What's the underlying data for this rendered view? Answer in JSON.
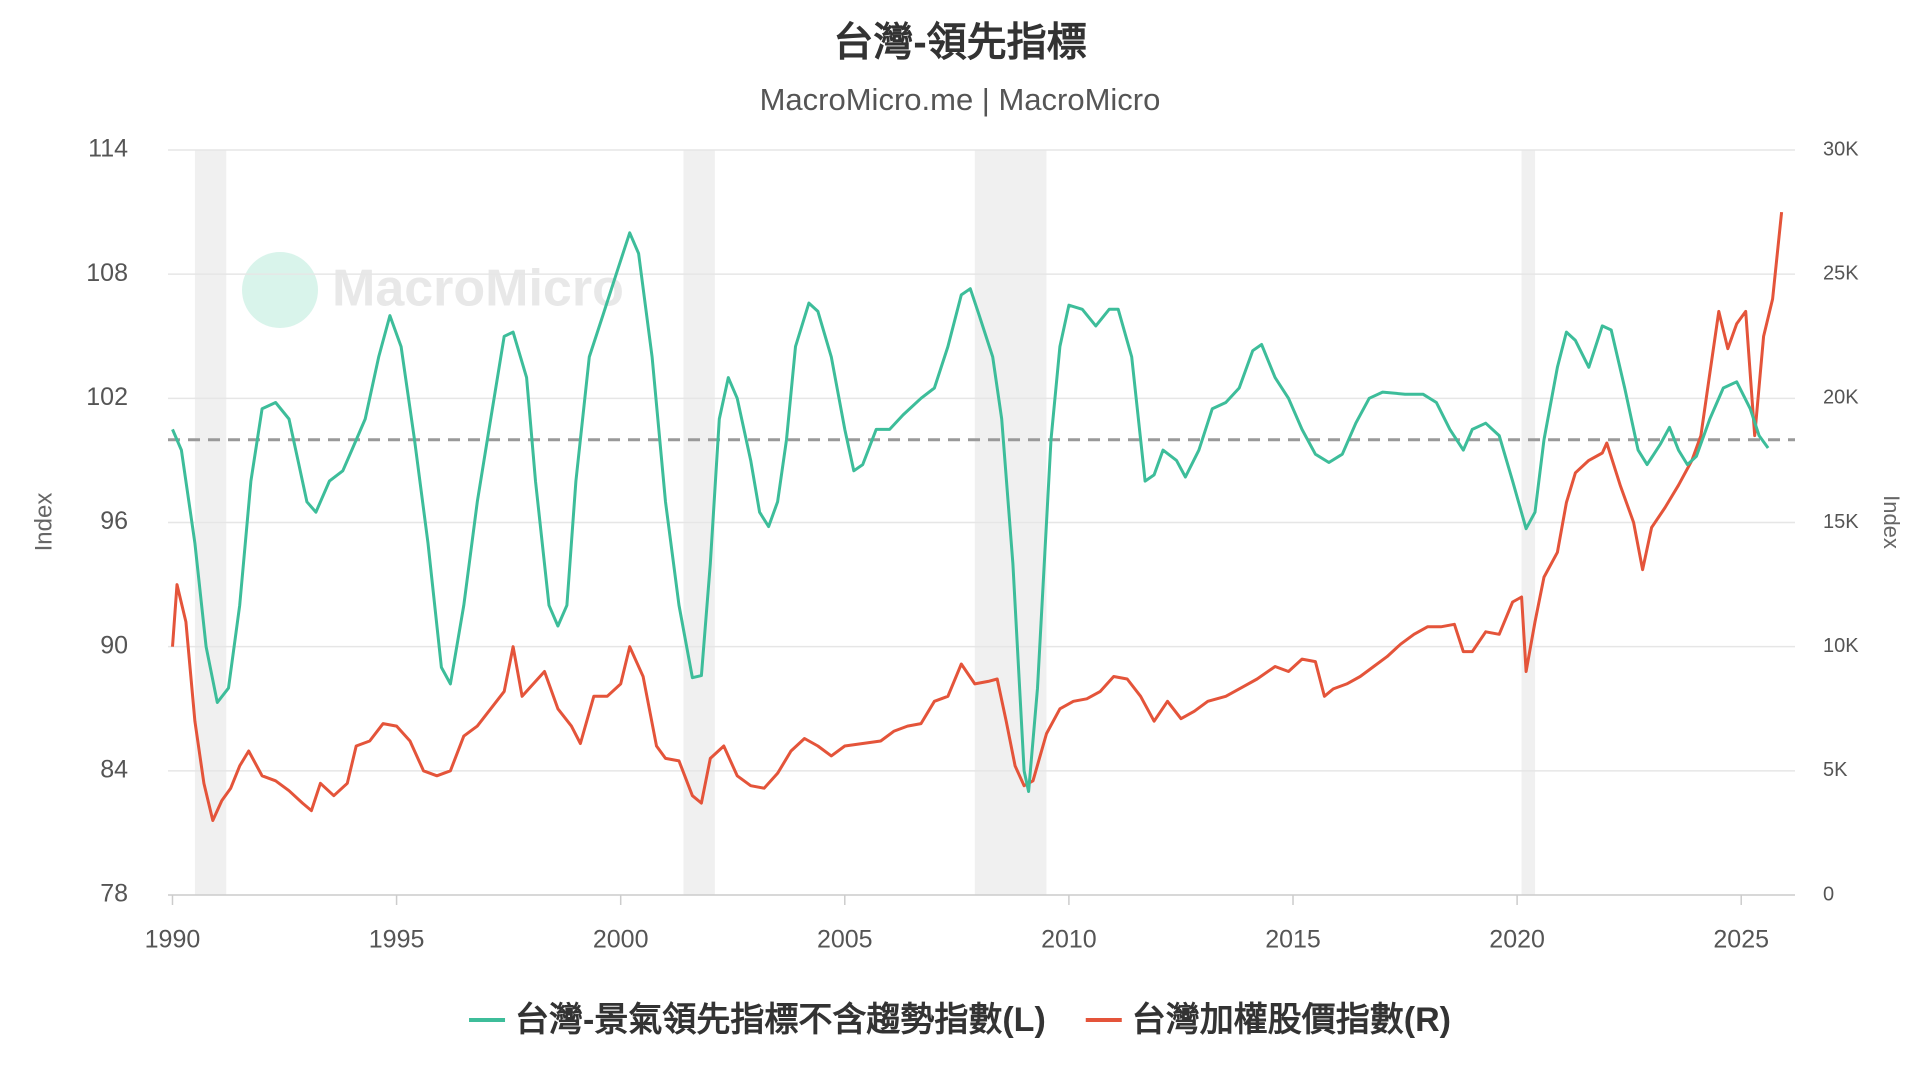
{
  "chart_data": {
    "type": "line",
    "title": "台灣-領先指標",
    "subtitle": "MacroMicro.me | MacroMicro",
    "watermark": "MacroMicro",
    "ylabel": "Index",
    "y2label": "Index",
    "xlim": [
      1989.9,
      2026.2
    ],
    "xticks": [
      1990,
      1995,
      2000,
      2005,
      2010,
      2015,
      2020,
      2025
    ],
    "ylim": [
      78,
      114
    ],
    "yticks": [
      78,
      84,
      90,
      96,
      102,
      108,
      114
    ],
    "y2lim": [
      0,
      30000
    ],
    "y2ticks": [
      0,
      {
        "value": 5000,
        "label": "5K"
      },
      {
        "value": 10000,
        "label": "10K"
      },
      {
        "value": 15000,
        "label": "15K"
      },
      {
        "value": 20000,
        "label": "20K"
      },
      {
        "value": 25000,
        "label": "25K"
      },
      {
        "value": 30000,
        "label": "30K"
      }
    ],
    "grid": true,
    "legend": "bottom",
    "reference_line": 100,
    "shaded_periods": [
      [
        1990.5,
        1991.2
      ],
      [
        2001.4,
        2002.1
      ],
      [
        2007.9,
        2009.5
      ],
      [
        2020.1,
        2020.4
      ]
    ],
    "series": [
      {
        "name": "台灣-景氣領先指標不含趨勢指數(L)",
        "color": "#3dbd9a",
        "axis": "y",
        "x": [
          1990.0,
          1990.2,
          1990.5,
          1990.75,
          1991.0,
          1991.25,
          1991.5,
          1991.75,
          1992.0,
          1992.3,
          1992.6,
          1992.8,
          1993.0,
          1993.2,
          1993.5,
          1993.8,
          1994.0,
          1994.3,
          1994.6,
          1994.85,
          1995.1,
          1995.4,
          1995.7,
          1996.0,
          1996.2,
          1996.5,
          1996.8,
          1997.1,
          1997.4,
          1997.6,
          1997.9,
          1998.1,
          1998.4,
          1998.6,
          1998.8,
          1999.0,
          1999.3,
          1999.6,
          1999.9,
          2000.2,
          2000.4,
          2000.7,
          2001.0,
          2001.3,
          2001.6,
          2001.8,
          2002.0,
          2002.2,
          2002.4,
          2002.6,
          2002.9,
          2003.1,
          2003.3,
          2003.5,
          2003.7,
          2003.9,
          2004.2,
          2004.4,
          2004.7,
          2005.0,
          2005.2,
          2005.4,
          2005.7,
          2006.0,
          2006.3,
          2006.7,
          2007.0,
          2007.3,
          2007.6,
          2007.8,
          2008.0,
          2008.3,
          2008.5,
          2008.75,
          2009.0,
          2009.1,
          2009.3,
          2009.6,
          2009.8,
          2010.0,
          2010.3,
          2010.6,
          2010.9,
          2011.1,
          2011.4,
          2011.7,
          2011.9,
          2012.1,
          2012.4,
          2012.6,
          2012.9,
          2013.2,
          2013.5,
          2013.8,
          2014.1,
          2014.3,
          2014.6,
          2014.9,
          2015.2,
          2015.5,
          2015.8,
          2016.1,
          2016.4,
          2016.7,
          2017.0,
          2017.5,
          2017.9,
          2018.2,
          2018.5,
          2018.8,
          2019.0,
          2019.3,
          2019.6,
          2019.9,
          2020.2,
          2020.4,
          2020.6,
          2020.9,
          2021.1,
          2021.3,
          2021.6,
          2021.9,
          2022.1,
          2022.4,
          2022.7,
          2022.9,
          2023.2,
          2023.4,
          2023.6,
          2023.8,
          2024.0,
          2024.3,
          2024.6,
          2024.9,
          2025.2,
          2025.4,
          2025.6
        ],
        "values": [
          100.5,
          99.5,
          95,
          90,
          87.3,
          88,
          92,
          98,
          101.5,
          101.8,
          101,
          99,
          97,
          96.5,
          98,
          98.5,
          99.5,
          101,
          104,
          106,
          104.5,
          100,
          95,
          89,
          88.2,
          92,
          97,
          101,
          105,
          105.2,
          103,
          98,
          92,
          91,
          92,
          98,
          104,
          106,
          108,
          110,
          109,
          104,
          97,
          92,
          88.5,
          88.6,
          94,
          101,
          103,
          102,
          99,
          96.5,
          95.8,
          97,
          100,
          104.5,
          106.6,
          106.2,
          104,
          100.5,
          98.5,
          98.8,
          100.5,
          100.5,
          101.2,
          102,
          102.5,
          104.5,
          107,
          107.3,
          106,
          104,
          101,
          94,
          84,
          83,
          88,
          100,
          104.5,
          106.5,
          106.3,
          105.5,
          106.3,
          106.3,
          104,
          98,
          98.3,
          99.5,
          99,
          98.2,
          99.5,
          101.5,
          101.8,
          102.5,
          104.3,
          104.6,
          103,
          102,
          100.5,
          99.3,
          98.9,
          99.3,
          100.8,
          102,
          102.3,
          102.2,
          102.2,
          101.8,
          100.5,
          99.5,
          100.5,
          100.8,
          100.2,
          98,
          95.7,
          96.5,
          100,
          103.5,
          105.2,
          104.8,
          103.5,
          105.5,
          105.3,
          102.5,
          99.5,
          98.8,
          99.8,
          100.6,
          99.5,
          98.8,
          99.2,
          101,
          102.5,
          102.8,
          101.5,
          100.2,
          99.6
        ]
      },
      {
        "name": "台灣加權股價指數(R)",
        "color": "#e4543a",
        "axis": "y2",
        "x": [
          1990.0,
          1990.1,
          1990.3,
          1990.5,
          1990.7,
          1990.9,
          1991.1,
          1991.3,
          1991.5,
          1991.7,
          1992.0,
          1992.3,
          1992.6,
          1992.9,
          1993.1,
          1993.3,
          1993.6,
          1993.9,
          1994.1,
          1994.4,
          1994.7,
          1995.0,
          1995.3,
          1995.6,
          1995.9,
          1996.2,
          1996.5,
          1996.8,
          1997.1,
          1997.4,
          1997.6,
          1997.8,
          1998.0,
          1998.3,
          1998.6,
          1998.9,
          1999.1,
          1999.4,
          1999.7,
          2000.0,
          2000.2,
          2000.5,
          2000.8,
          2001.0,
          2001.3,
          2001.6,
          2001.8,
          2002.0,
          2002.3,
          2002.6,
          2002.9,
          2003.2,
          2003.5,
          2003.8,
          2004.1,
          2004.4,
          2004.7,
          2005.0,
          2005.4,
          2005.8,
          2006.1,
          2006.4,
          2006.7,
          2007.0,
          2007.3,
          2007.6,
          2007.9,
          2008.2,
          2008.4,
          2008.6,
          2008.8,
          2009.0,
          2009.2,
          2009.5,
          2009.8,
          2010.1,
          2010.4,
          2010.7,
          2011.0,
          2011.3,
          2011.6,
          2011.9,
          2012.2,
          2012.5,
          2012.8,
          2013.1,
          2013.5,
          2013.9,
          2014.2,
          2014.6,
          2014.9,
          2015.2,
          2015.5,
          2015.7,
          2015.9,
          2016.2,
          2016.5,
          2016.8,
          2017.1,
          2017.4,
          2017.7,
          2018.0,
          2018.3,
          2018.6,
          2018.8,
          2019.0,
          2019.3,
          2019.6,
          2019.9,
          2020.1,
          2020.2,
          2020.4,
          2020.6,
          2020.9,
          2021.1,
          2021.3,
          2021.6,
          2021.9,
          2022.0,
          2022.3,
          2022.6,
          2022.8,
          2023.0,
          2023.3,
          2023.6,
          2023.9,
          2024.1,
          2024.3,
          2024.5,
          2024.7,
          2024.9,
          2025.1,
          2025.3,
          2025.5,
          2025.7,
          2025.9
        ],
        "values": [
          10000,
          12500,
          11000,
          7000,
          4500,
          3000,
          3800,
          4300,
          5200,
          5800,
          4800,
          4600,
          4200,
          3700,
          3400,
          4500,
          4000,
          4500,
          6000,
          6200,
          6900,
          6800,
          6200,
          5000,
          4800,
          5000,
          6400,
          6800,
          7500,
          8200,
          10000,
          8000,
          8400,
          9000,
          7500,
          6800,
          6100,
          8000,
          8000,
          8500,
          10000,
          8800,
          6000,
          5500,
          5400,
          4000,
          3700,
          5500,
          6000,
          4800,
          4400,
          4300,
          4900,
          5800,
          6300,
          6000,
          5600,
          6000,
          6100,
          6200,
          6600,
          6800,
          6900,
          7800,
          8000,
          9300,
          8500,
          8600,
          8700,
          7000,
          5200,
          4400,
          4600,
          6500,
          7500,
          7800,
          7900,
          8200,
          8800,
          8700,
          8000,
          7000,
          7800,
          7100,
          7400,
          7800,
          8000,
          8400,
          8700,
          9200,
          9000,
          9500,
          9400,
          8000,
          8300,
          8500,
          8800,
          9200,
          9600,
          10100,
          10500,
          10800,
          10800,
          10900,
          9800,
          9800,
          10600,
          10500,
          11800,
          12000,
          9000,
          11000,
          12800,
          13800,
          15800,
          17000,
          17500,
          17800,
          18200,
          16500,
          15000,
          13100,
          14800,
          15600,
          16500,
          17500,
          18500,
          21000,
          23500,
          22000,
          23000,
          23500,
          18500,
          22500,
          24000,
          27500
        ]
      }
    ]
  }
}
